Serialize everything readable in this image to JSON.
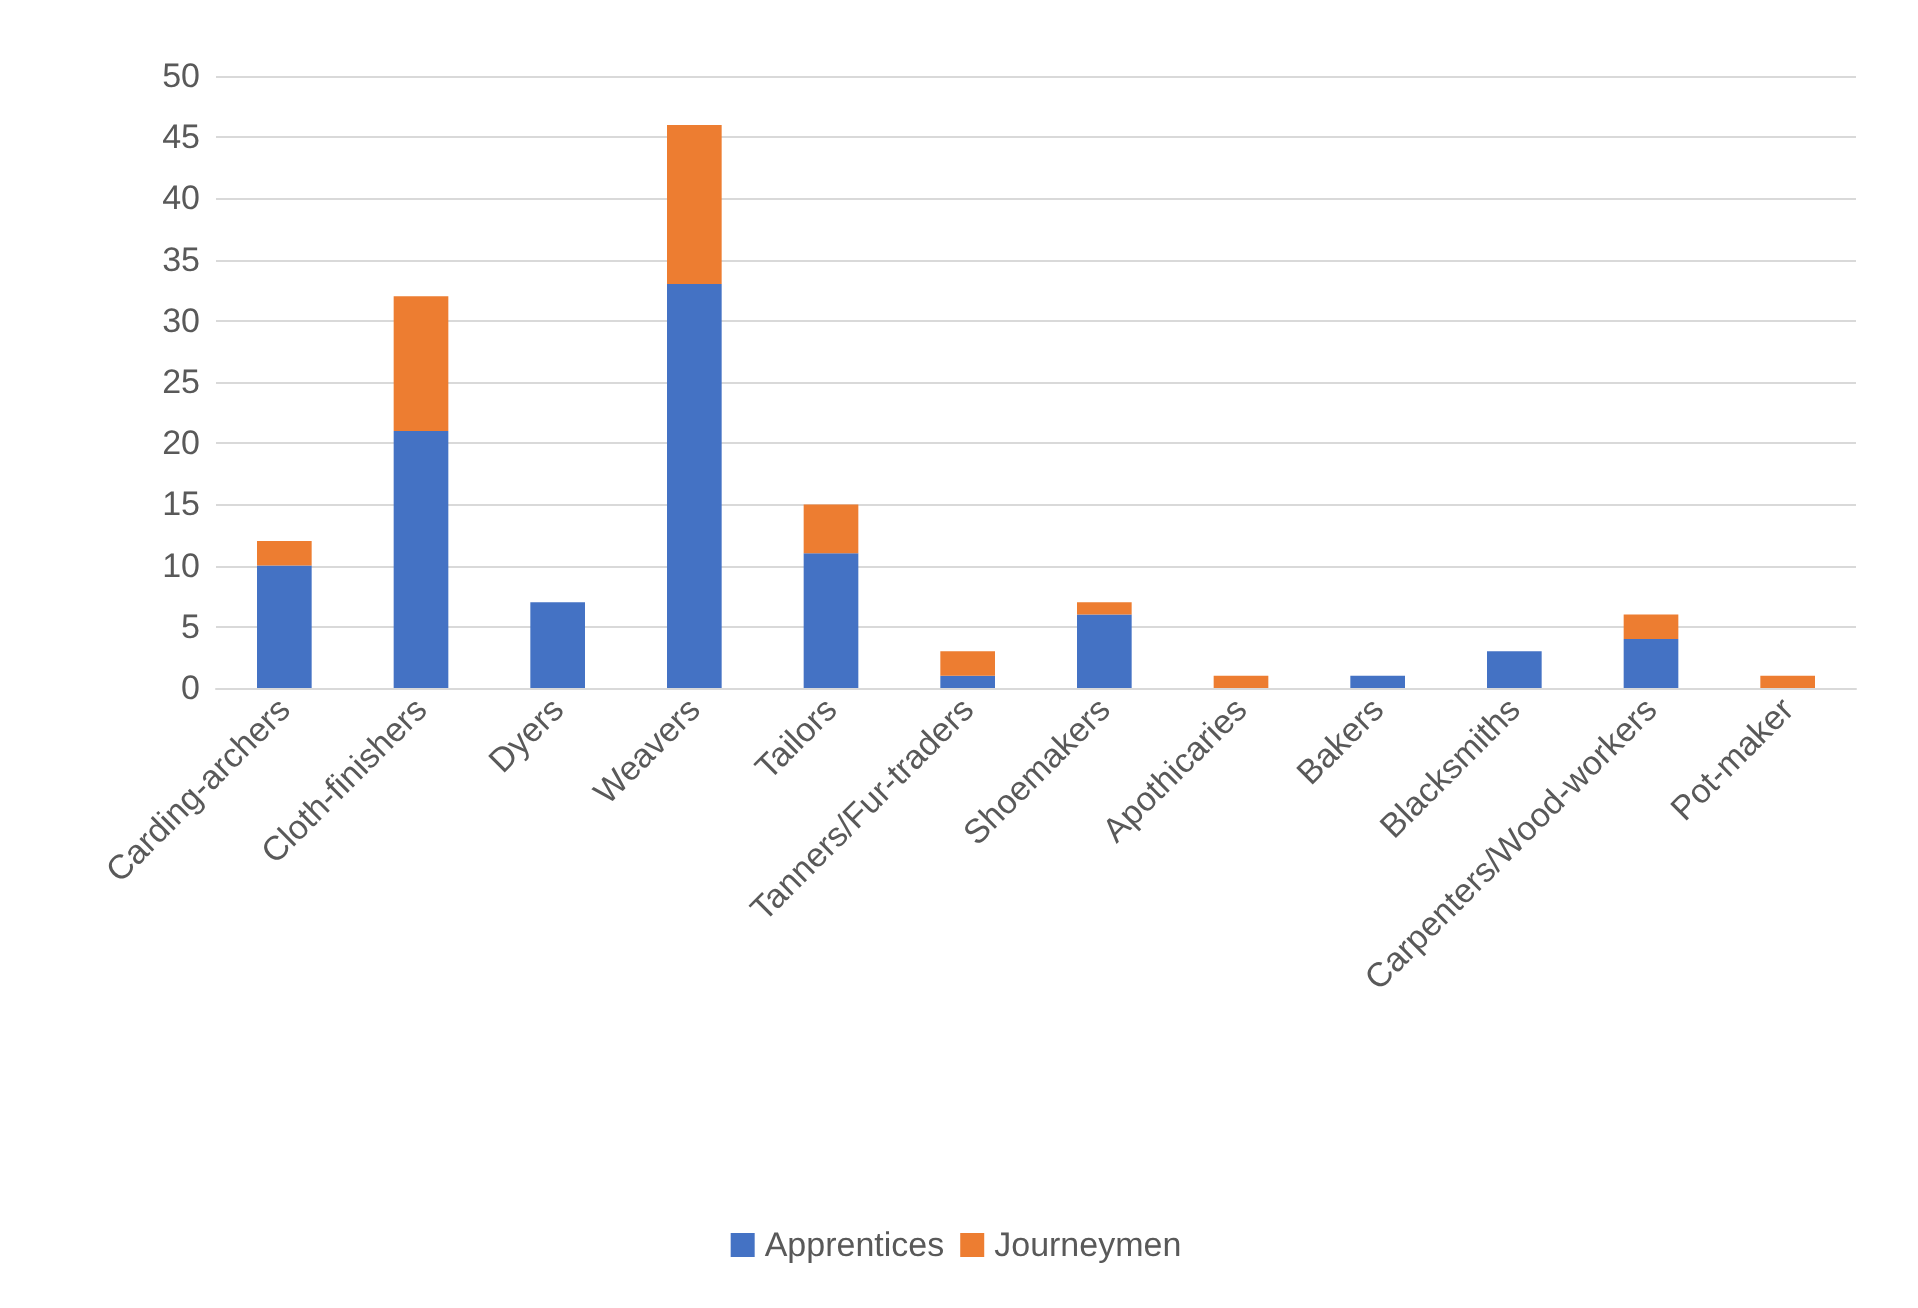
{
  "chart_data": {
    "type": "bar",
    "stacked": true,
    "categories": [
      "Carding-archers",
      "Cloth-finishers",
      "Dyers",
      "Weavers",
      "Tailors",
      "Tanners/Fur-traders",
      "Shoemakers",
      "Apothicaries",
      "Bakers",
      "Blacksmiths",
      "Carpenters/Wood-workers",
      "Pot-maker"
    ],
    "series": [
      {
        "name": "Apprentices",
        "color": "#4472c4",
        "values": [
          10,
          21,
          7,
          33,
          11,
          1,
          6,
          0,
          1,
          3,
          4,
          0
        ]
      },
      {
        "name": "Journeymen",
        "color": "#ed7d31",
        "values": [
          2,
          11,
          0,
          13,
          4,
          2,
          1,
          1,
          0,
          0,
          2,
          1
        ]
      }
    ],
    "ylim": [
      0,
      50
    ],
    "yticks": [
      0,
      5,
      10,
      15,
      20,
      25,
      30,
      35,
      40,
      45,
      50
    ],
    "grid": "y",
    "legend": "bottom"
  }
}
